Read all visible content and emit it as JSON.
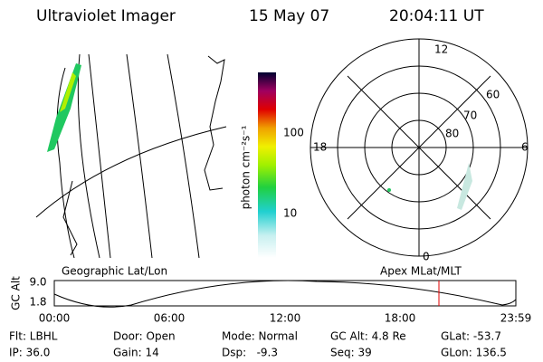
{
  "header": {
    "title": "Ultraviolet Imager",
    "date": "15 May 07",
    "time": "20:04:11 UT"
  },
  "colorbar": {
    "label": "photon cm⁻²s⁻¹",
    "ticks": [
      "100",
      "10"
    ]
  },
  "polar": {
    "mlt": [
      "12",
      "18",
      "6",
      "0"
    ],
    "mlat": [
      "60",
      "70",
      "80"
    ]
  },
  "alt_plot": {
    "left_label": "Geographic Lat/Lon",
    "right_label": "Apex MLat/MLT",
    "ylabel": "GC Alt",
    "yticks": [
      "9.0",
      "1.8"
    ],
    "xticks": [
      "00:00",
      "06:00",
      "12:00",
      "18:00",
      "23:59"
    ]
  },
  "footer": {
    "rows": [
      [
        "Flt: LBHL",
        "Door: Open",
        "Mode: Normal",
        "GC Alt: 4.8 Re",
        "GLat: -53.7"
      ],
      [
        "IP: 36.0",
        "Gain: 14",
        "Dsp:   -9.3",
        "Seq: 39",
        "GLon: 136.5"
      ]
    ]
  }
}
